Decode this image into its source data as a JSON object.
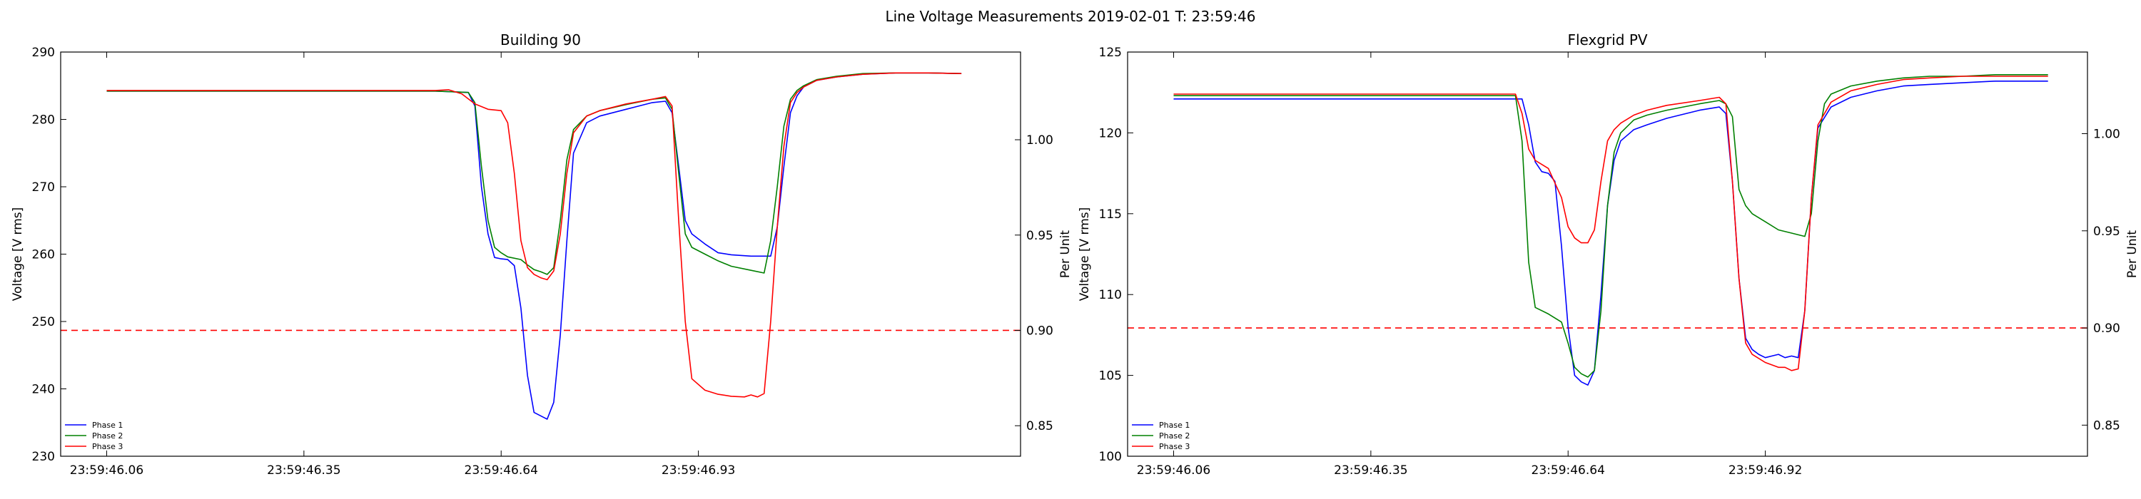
{
  "figure": {
    "title": "Line Voltage Measurements 2019-02-01 T: 23:59:46"
  },
  "colors": {
    "phase1": "#0000ff",
    "phase2": "#008000",
    "phase3": "#ff0000",
    "threshold": "#ff0000"
  },
  "chart_data": [
    {
      "type": "line",
      "title": "Building 90",
      "ylabel": "Voltage [V rms]",
      "y2label": "Per Unit",
      "ylim": [
        230,
        290
      ],
      "y2lim": [
        0.834,
        1.046
      ],
      "xlim": [
        23.8,
        38.4
      ],
      "xtick_positions": [
        24.5,
        27.5,
        30.5,
        33.5
      ],
      "xtick_labels": [
        "23:59:46.06",
        "23:59:46.35",
        "23:59:46.64",
        "23:59:46.93"
      ],
      "yticks": [
        230,
        240,
        250,
        260,
        270,
        280,
        290
      ],
      "y2ticks": [
        0.85,
        0.9,
        0.95,
        1.0
      ],
      "y2tick_labels": [
        "0.85",
        "0.90",
        "0.95",
        "1.00"
      ],
      "threshold_pu": 0.9,
      "legend": "lower-left",
      "grid": false,
      "series": [
        {
          "name": "Phase 1",
          "color": "#0000ff",
          "x": [
            24.5,
            29.5,
            30.0,
            30.1,
            30.2,
            30.3,
            30.4,
            30.5,
            30.6,
            30.7,
            30.8,
            30.9,
            31.0,
            31.1,
            31.2,
            31.3,
            31.4,
            31.5,
            31.6,
            31.8,
            32.0,
            32.4,
            32.8,
            33.0,
            33.1,
            33.2,
            33.3,
            33.4,
            33.6,
            33.8,
            34.0,
            34.3,
            34.6,
            34.7,
            34.8,
            34.9,
            35.0,
            35.1,
            35.3,
            35.6,
            36.0,
            36.5,
            37.0,
            37.5
          ],
          "y": [
            284.2,
            284.2,
            284.0,
            282.0,
            270.0,
            263.0,
            259.5,
            259.3,
            259.2,
            258.3,
            252.0,
            242.0,
            236.5,
            236.0,
            235.5,
            238.0,
            248.0,
            262.0,
            275.0,
            279.5,
            280.5,
            281.5,
            282.5,
            282.7,
            281.0,
            273.0,
            265.0,
            263.0,
            261.5,
            260.2,
            259.9,
            259.7,
            259.7,
            264.0,
            273.0,
            281.0,
            283.5,
            284.8,
            285.8,
            286.3,
            286.7,
            286.9,
            286.9,
            286.8
          ]
        },
        {
          "name": "Phase 2",
          "color": "#008000",
          "x": [
            24.5,
            29.5,
            30.0,
            30.1,
            30.2,
            30.3,
            30.4,
            30.5,
            30.6,
            30.8,
            30.9,
            31.0,
            31.1,
            31.2,
            31.3,
            31.4,
            31.5,
            31.6,
            31.8,
            32.0,
            32.4,
            32.8,
            33.0,
            33.1,
            33.2,
            33.3,
            33.4,
            33.6,
            33.8,
            34.0,
            34.3,
            34.5,
            34.6,
            34.7,
            34.8,
            34.9,
            35.0,
            35.1,
            35.3,
            35.6,
            36.0,
            36.5,
            37.0,
            37.5
          ],
          "y": [
            284.2,
            284.2,
            284.0,
            282.5,
            273.0,
            265.0,
            261.0,
            260.2,
            259.6,
            259.2,
            258.4,
            257.7,
            257.4,
            257.0,
            258.0,
            265.0,
            274.0,
            278.5,
            280.5,
            281.3,
            282.2,
            283.0,
            283.2,
            281.5,
            272.0,
            263.0,
            261.0,
            260.0,
            259.0,
            258.2,
            257.6,
            257.2,
            262.0,
            270.0,
            279.0,
            283.0,
            284.3,
            285.0,
            285.9,
            286.4,
            286.8,
            286.9,
            286.9,
            286.8
          ]
        },
        {
          "name": "Phase 3",
          "color": "#ff0000",
          "x": [
            24.5,
            29.5,
            29.7,
            29.9,
            30.1,
            30.3,
            30.5,
            30.6,
            30.7,
            30.8,
            30.9,
            31.0,
            31.1,
            31.2,
            31.3,
            31.4,
            31.5,
            31.6,
            31.8,
            32.0,
            32.4,
            32.8,
            33.0,
            33.1,
            33.2,
            33.3,
            33.4,
            33.6,
            33.8,
            34.0,
            34.2,
            34.3,
            34.4,
            34.5,
            34.6,
            34.7,
            34.8,
            34.9,
            35.0,
            35.1,
            35.3,
            35.6,
            36.0,
            36.5,
            37.0,
            37.5
          ],
          "y": [
            284.3,
            284.3,
            284.4,
            283.8,
            282.3,
            281.5,
            281.3,
            279.5,
            272.0,
            262.0,
            258.0,
            257.0,
            256.5,
            256.2,
            257.5,
            263.0,
            272.0,
            278.0,
            280.5,
            281.3,
            282.3,
            283.0,
            283.4,
            282.0,
            265.0,
            250.0,
            241.5,
            239.8,
            239.2,
            238.9,
            238.8,
            239.1,
            238.8,
            239.3,
            250.0,
            264.0,
            276.0,
            282.5,
            284.0,
            284.8,
            285.8,
            286.3,
            286.7,
            286.9,
            286.9,
            286.8
          ]
        }
      ]
    },
    {
      "type": "line",
      "title": "Flexgrid PV",
      "ylabel": "Voltage [V rms]",
      "y2label": "Per Unit",
      "ylim": [
        100,
        125
      ],
      "y2lim": [
        0.834,
        1.042
      ],
      "xlim": [
        23.8,
        38.4
      ],
      "xtick_positions": [
        24.5,
        27.5,
        30.5,
        33.5
      ],
      "xtick_labels": [
        "23:59:46.06",
        "23:59:46.35",
        "23:59:46.64",
        "23:59:46.92"
      ],
      "yticks": [
        100,
        105,
        110,
        115,
        120,
        125
      ],
      "y2ticks": [
        0.85,
        0.9,
        0.95,
        1.0
      ],
      "y2tick_labels": [
        "0.85",
        "0.90",
        "0.95",
        "1.00"
      ],
      "threshold_pu": 0.9,
      "legend": "lower-left",
      "grid": false,
      "series": [
        {
          "name": "Phase 1",
          "color": "#0000ff",
          "x": [
            24.5,
            29.5,
            29.8,
            29.9,
            30.0,
            30.1,
            30.2,
            30.3,
            30.4,
            30.5,
            30.6,
            30.7,
            30.8,
            30.9,
            31.0,
            31.1,
            31.2,
            31.3,
            31.5,
            31.7,
            32.0,
            32.5,
            32.8,
            32.9,
            33.0,
            33.1,
            33.2,
            33.3,
            33.4,
            33.5,
            33.6,
            33.7,
            33.8,
            33.9,
            34.0,
            34.1,
            34.2,
            34.3,
            34.5,
            34.8,
            35.2,
            35.6,
            36.0,
            36.5,
            37.0,
            37.8
          ],
          "y": [
            122.1,
            122.1,
            122.1,
            120.5,
            118.2,
            117.6,
            117.5,
            117.0,
            113.0,
            108.0,
            105.0,
            104.6,
            104.4,
            105.3,
            110.0,
            115.5,
            118.3,
            119.5,
            120.2,
            120.5,
            120.9,
            121.4,
            121.6,
            121.2,
            117.0,
            111.0,
            107.3,
            106.6,
            106.3,
            106.1,
            106.2,
            106.3,
            106.1,
            106.2,
            106.1,
            109.0,
            116.0,
            120.3,
            121.6,
            122.2,
            122.6,
            122.9,
            123.0,
            123.1,
            123.2,
            123.2
          ]
        },
        {
          "name": "Phase 2",
          "color": "#008000",
          "x": [
            24.5,
            29.5,
            29.7,
            29.8,
            29.9,
            30.0,
            30.2,
            30.4,
            30.5,
            30.6,
            30.7,
            30.8,
            30.9,
            31.0,
            31.1,
            31.2,
            31.3,
            31.5,
            31.7,
            32.0,
            32.5,
            32.8,
            32.9,
            33.0,
            33.1,
            33.2,
            33.3,
            33.5,
            33.7,
            33.9,
            34.1,
            34.2,
            34.3,
            34.4,
            34.5,
            34.8,
            35.2,
            35.6,
            36.0,
            36.5,
            37.0,
            37.8
          ],
          "y": [
            122.3,
            122.3,
            122.3,
            119.5,
            112.0,
            109.2,
            108.8,
            108.3,
            107.0,
            105.5,
            105.1,
            104.9,
            105.3,
            109.0,
            115.5,
            118.8,
            120.0,
            120.8,
            121.1,
            121.4,
            121.8,
            122.0,
            121.8,
            121.0,
            116.5,
            115.5,
            115.0,
            114.5,
            114.0,
            113.8,
            113.6,
            115.0,
            119.5,
            121.8,
            122.4,
            122.9,
            123.2,
            123.4,
            123.5,
            123.5,
            123.6,
            123.6
          ]
        },
        {
          "name": "Phase 3",
          "color": "#ff0000",
          "x": [
            24.5,
            29.5,
            29.7,
            29.8,
            29.9,
            30.0,
            30.2,
            30.4,
            30.5,
            30.6,
            30.7,
            30.8,
            30.9,
            31.0,
            31.1,
            31.2,
            31.3,
            31.5,
            31.7,
            32.0,
            32.5,
            32.8,
            32.9,
            33.0,
            33.1,
            33.2,
            33.3,
            33.5,
            33.7,
            33.8,
            33.9,
            34.0,
            34.1,
            34.2,
            34.3,
            34.5,
            34.8,
            35.2,
            35.6,
            36.0,
            36.5,
            37.0,
            37.8
          ],
          "y": [
            122.4,
            122.4,
            122.4,
            121.2,
            119.0,
            118.3,
            117.8,
            116.0,
            114.2,
            113.5,
            113.2,
            113.2,
            114.0,
            117.0,
            119.5,
            120.2,
            120.6,
            121.1,
            121.4,
            121.7,
            122.0,
            122.2,
            121.8,
            117.0,
            111.0,
            107.0,
            106.3,
            105.8,
            105.5,
            105.5,
            105.3,
            105.4,
            109.0,
            116.0,
            120.5,
            121.9,
            122.6,
            123.0,
            123.3,
            123.4,
            123.5,
            123.5,
            123.5
          ]
        }
      ]
    }
  ]
}
